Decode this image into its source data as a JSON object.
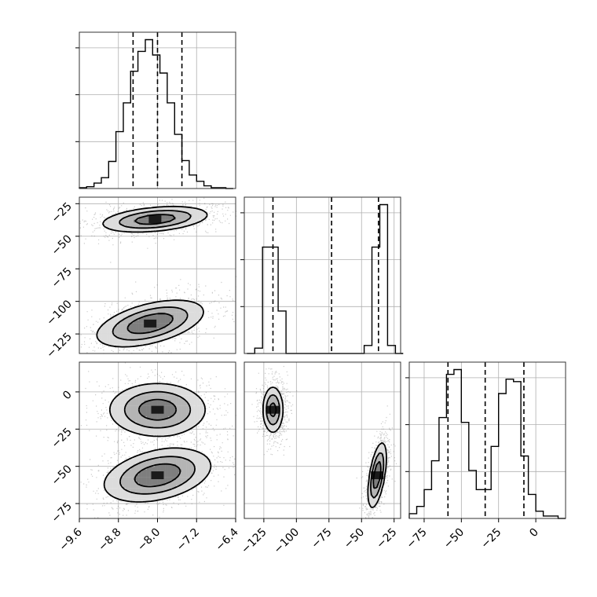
{
  "chart_data": {
    "type": "corner",
    "grid": true,
    "variables": [
      {
        "ticks": [
          -9.6,
          -8.8,
          -8.0,
          -7.2,
          -6.4
        ],
        "tick_labels": [
          "−9.6",
          "−8.8",
          "−8.0",
          "−7.2",
          "−6.4"
        ],
        "range": [
          -9.6,
          -6.4
        ]
      },
      {
        "ticks": [
          -125,
          -100,
          -75,
          -50,
          -25
        ],
        "tick_labels": [
          "−125",
          "−100",
          "−75",
          "−50",
          "−25"
        ],
        "range": [
          -140,
          -20
        ]
      },
      {
        "ticks": [
          -75,
          -50,
          -25,
          0
        ],
        "tick_labels": [
          "−75",
          "−50",
          "−25",
          "0"
        ],
        "range": [
          -85,
          20
        ]
      }
    ],
    "marginals": [
      {
        "variable": 0,
        "bin_edges": [
          -9.6,
          -9.45,
          -9.3,
          -9.15,
          -9.0,
          -8.85,
          -8.7,
          -8.55,
          -8.4,
          -8.25,
          -8.1,
          -7.95,
          -7.8,
          -7.65,
          -7.5,
          -7.35,
          -7.2,
          -7.05,
          -6.9,
          -6.75,
          -6.6,
          -6.45
        ],
        "counts": [
          1,
          2,
          6,
          12,
          30,
          63,
          95,
          130,
          152,
          165,
          148,
          128,
          95,
          60,
          31,
          15,
          8,
          3,
          1,
          1,
          0
        ],
        "quantiles": [
          -8.5,
          -8.0,
          -7.5
        ]
      },
      {
        "variable": 1,
        "bin_edges": [
          -138,
          -132,
          -126,
          -120,
          -114,
          -108,
          -102,
          -96,
          -90,
          -84,
          -78,
          -72,
          -66,
          -60,
          -54,
          -48,
          -42,
          -36,
          -30,
          -24,
          -18
        ],
        "counts": [
          0,
          10,
          200,
          200,
          80,
          0,
          0,
          0,
          0,
          0,
          0,
          0,
          0,
          0,
          0,
          15,
          200,
          280,
          15,
          0
        ],
        "quantiles": [
          -118,
          -73,
          -37
        ]
      },
      {
        "variable": 2,
        "bin_edges": [
          -85,
          -80,
          -75,
          -70,
          -65,
          -60,
          -55,
          -50,
          -45,
          -40,
          -35,
          -30,
          -25,
          -20,
          -15,
          -10,
          -5,
          0,
          5,
          10,
          15,
          20
        ],
        "counts": [
          2,
          5,
          12,
          24,
          42,
          60,
          62,
          40,
          20,
          12,
          12,
          30,
          52,
          58,
          57,
          26,
          10,
          3,
          1,
          1,
          0
        ],
        "quantiles": [
          -59,
          -34,
          -8
        ]
      }
    ],
    "joint": [
      {
        "x": 0,
        "y": 1,
        "modes": [
          {
            "center": [
              -8.05,
              -37
            ],
            "spread": [
              0.55,
              5
            ],
            "corr": 0.35,
            "weight": 0.5
          },
          {
            "center": [
              -8.15,
              -117
            ],
            "spread": [
              0.55,
              9
            ],
            "corr": 0.5,
            "weight": 0.5
          }
        ]
      },
      {
        "x": 0,
        "y": 2,
        "modes": [
          {
            "center": [
              -8.0,
              -12
            ],
            "spread": [
              0.5,
              9
            ],
            "corr": 0.0,
            "weight": 0.5
          },
          {
            "center": [
              -8.0,
              -56
            ],
            "spread": [
              0.55,
              9
            ],
            "corr": 0.35,
            "weight": 0.5
          }
        ]
      },
      {
        "x": 1,
        "y": 2,
        "modes": [
          {
            "center": [
              -118,
              -12
            ],
            "spread": [
              4,
              8
            ],
            "corr": 0.0,
            "weight": 0.5
          },
          {
            "center": [
              -38,
              -56
            ],
            "spread": [
              3.5,
              11
            ],
            "corr": 0.55,
            "weight": 0.5
          }
        ]
      }
    ]
  }
}
